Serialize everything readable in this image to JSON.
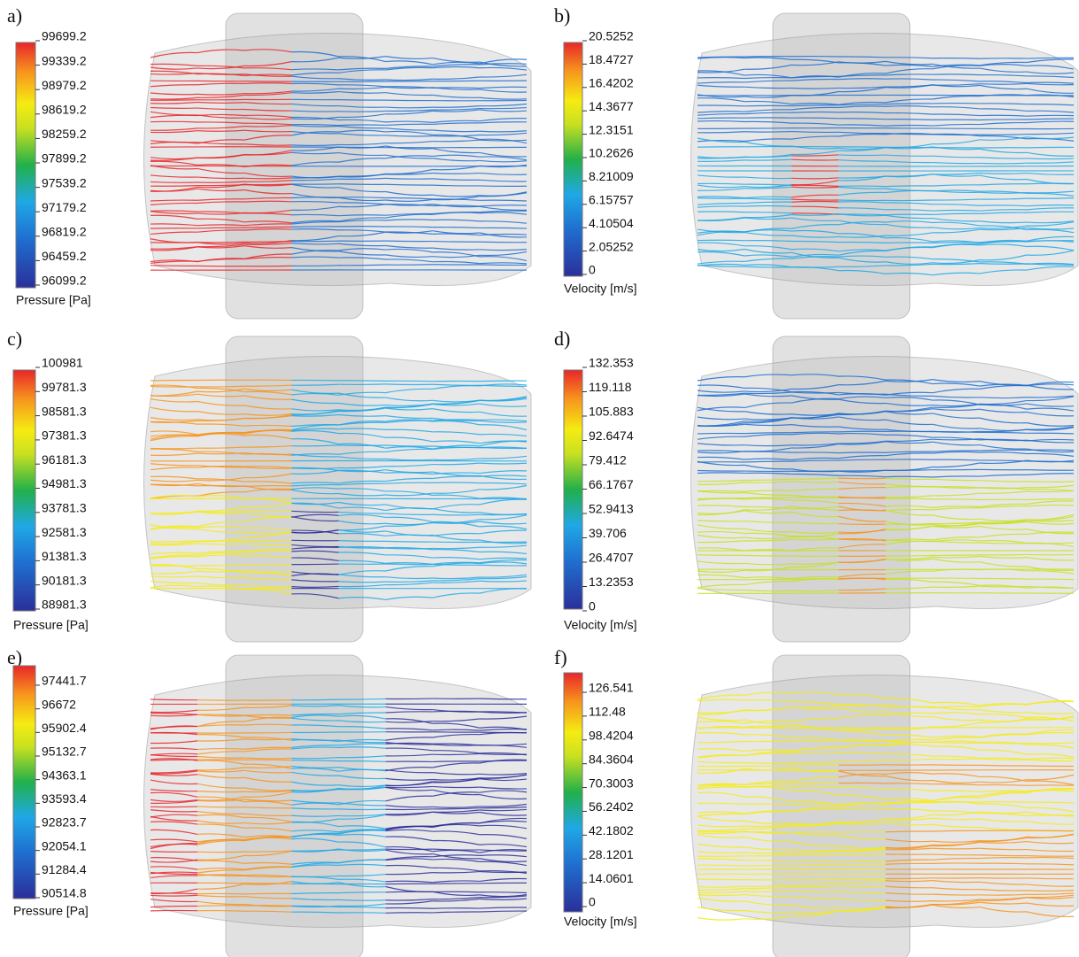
{
  "panels": [
    {
      "label": "a)",
      "colorbar": {
        "title": "Pressure [Pa]",
        "ticks": [
          "99699.2",
          "99339.2",
          "98979.2",
          "98619.2",
          "98259.2",
          "97899.2",
          "97539.2",
          "97179.2",
          "96819.2",
          "96459.2",
          "96099.2"
        ]
      }
    },
    {
      "label": "b)",
      "colorbar": {
        "title": "Velocity [m/s]",
        "ticks": [
          "20.5252",
          "18.4727",
          "16.4202",
          "14.3677",
          "12.3151",
          "10.2626",
          "8.21009",
          "6.15757",
          "4.10504",
          "2.05252",
          "0"
        ]
      }
    },
    {
      "label": "c)",
      "colorbar": {
        "title": "Pressure [Pa]",
        "ticks": [
          "100981",
          "99781.3",
          "98581.3",
          "97381.3",
          "96181.3",
          "94981.3",
          "93781.3",
          "92581.3",
          "91381.3",
          "90181.3",
          "88981.3"
        ]
      }
    },
    {
      "label": "d)",
      "colorbar": {
        "title": "Velocity [m/s]",
        "ticks": [
          "132.353",
          "119.118",
          "105.883",
          "92.6474",
          "79.412",
          "66.1767",
          "52.9413",
          "39.706",
          "26.4707",
          "13.2353",
          "0"
        ]
      }
    },
    {
      "label": "e)",
      "colorbar": {
        "title": "Pressure [Pa]",
        "ticks": [
          "97441.7",
          "96672",
          "95902.4",
          "95132.7",
          "94363.1",
          "93593.4",
          "92823.7",
          "92054.1",
          "91284.4",
          "90514.8"
        ]
      }
    },
    {
      "label": "f)",
      "colorbar": {
        "title": "Velocity [m/s]",
        "ticks": [
          "126.541",
          "112.48",
          "98.4204",
          "84.3604",
          "70.3003",
          "56.2402",
          "42.1802",
          "28.1201",
          "14.0601",
          "0"
        ]
      }
    }
  ]
}
